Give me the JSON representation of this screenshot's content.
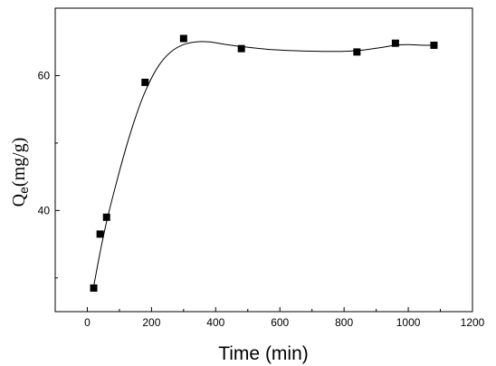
{
  "chart_data": {
    "type": "scatter",
    "xlabel": "Time (min)",
    "ylabel_main": "Q",
    "ylabel_sub": "e",
    "ylabel_unit": "(mg/g)",
    "xlim": [
      -100,
      1200
    ],
    "ylim": [
      25,
      70
    ],
    "x_ticks": [
      0,
      200,
      400,
      600,
      800,
      1000,
      1200
    ],
    "y_ticks_major": [
      40,
      60
    ],
    "y_ticks_minor": [
      30,
      50
    ],
    "grid": false,
    "series": [
      {
        "points": [
          {
            "x": 20,
            "y": 28.5
          },
          {
            "x": 40,
            "y": 36.5
          },
          {
            "x": 60,
            "y": 39
          },
          {
            "x": 180,
            "y": 59
          },
          {
            "x": 300,
            "y": 65.5
          },
          {
            "x": 480,
            "y": 64
          },
          {
            "x": 840,
            "y": 63.5
          },
          {
            "x": 960,
            "y": 64.8
          },
          {
            "x": 1080,
            "y": 64.5
          }
        ]
      }
    ],
    "fit_curve": [
      [
        20,
        28.8
      ],
      [
        40,
        33.8
      ],
      [
        60,
        38.3
      ],
      [
        90,
        44.0
      ],
      [
        120,
        49.2
      ],
      [
        150,
        53.8
      ],
      [
        180,
        57.6
      ],
      [
        220,
        61.3
      ],
      [
        260,
        63.5
      ],
      [
        300,
        64.6
      ],
      [
        340,
        65.0
      ],
      [
        380,
        65.0
      ],
      [
        420,
        64.7
      ],
      [
        480,
        64.3
      ],
      [
        560,
        63.9
      ],
      [
        640,
        63.7
      ],
      [
        720,
        63.6
      ],
      [
        800,
        63.6
      ],
      [
        860,
        63.8
      ],
      [
        920,
        64.2
      ],
      [
        960,
        64.5
      ],
      [
        1000,
        64.6
      ],
      [
        1040,
        64.5
      ],
      [
        1080,
        64.5
      ]
    ],
    "colors": {
      "marker": "#000000",
      "line": "#000000",
      "axis": "#000000"
    }
  }
}
